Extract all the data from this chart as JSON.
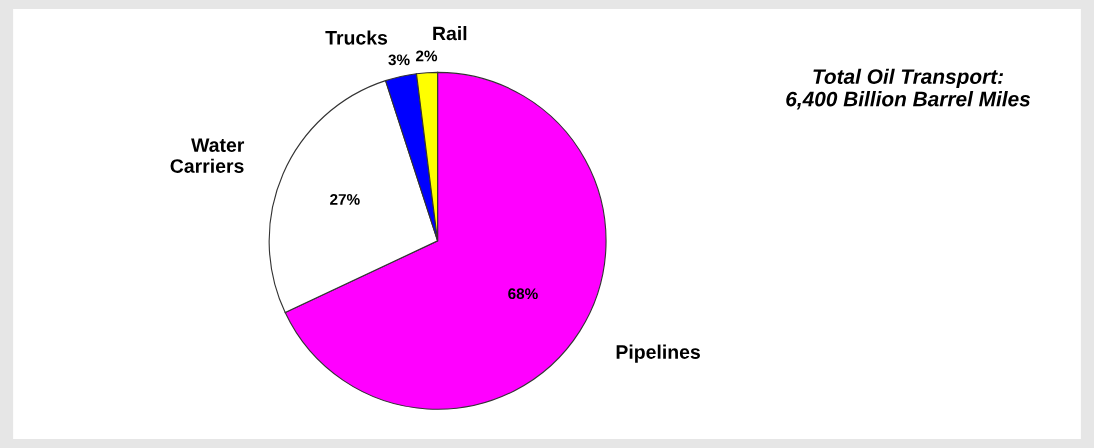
{
  "chart_data": {
    "type": "pie",
    "title": "Total Oil Transport:\n6,400 Billion Barrel Miles",
    "categories": [
      "Pipelines",
      "Water\nCarriers",
      "Trucks",
      "Rail"
    ],
    "values": [
      68,
      27,
      3,
      2
    ],
    "colors": [
      "#ff00ff",
      "#ffffff",
      "#0000ff",
      "#ffff00"
    ],
    "value_labels": [
      "68%",
      "27%",
      "3%",
      "2%"
    ],
    "legend": false
  }
}
